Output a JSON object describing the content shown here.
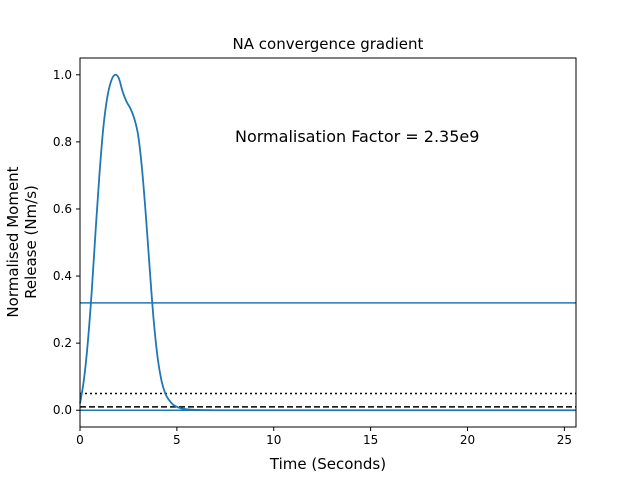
{
  "chart_data": {
    "type": "line",
    "title": "NA convergence gradient",
    "xlabel": "Time (Seconds)",
    "ylabel_lines": [
      "Normalised Moment",
      "Release (Nm/s)"
    ],
    "xlim": [
      0,
      25.6
    ],
    "ylim": [
      -0.05,
      1.05
    ],
    "x_ticks": [
      0,
      5,
      10,
      15,
      20,
      25
    ],
    "y_ticks": [
      0.0,
      0.2,
      0.4,
      0.6,
      0.8,
      1.0
    ],
    "x_tick_labels": [
      "0",
      "5",
      "10",
      "15",
      "20",
      "25"
    ],
    "y_tick_labels": [
      "0.0",
      "0.2",
      "0.4",
      "0.6",
      "0.8",
      "1.0"
    ],
    "grid": false,
    "line_color": "#1f77b4",
    "series": [
      {
        "style": "solid",
        "color": "#1f77b4",
        "x": [
          0,
          0.2,
          0.4,
          0.6,
          0.8,
          1.0,
          1.2,
          1.4,
          1.6,
          1.8,
          2.0,
          2.2,
          2.4,
          2.6,
          2.8,
          3.0,
          3.2,
          3.4,
          3.6,
          3.8,
          4.0,
          4.2,
          4.4,
          4.6,
          4.8,
          5.0,
          5.2,
          5.5,
          6.0,
          7.0,
          10,
          15,
          20,
          25.6
        ],
        "y": [
          0.02,
          0.09,
          0.2,
          0.35,
          0.53,
          0.7,
          0.84,
          0.93,
          0.98,
          1.0,
          0.99,
          0.95,
          0.92,
          0.9,
          0.87,
          0.82,
          0.72,
          0.58,
          0.42,
          0.27,
          0.16,
          0.09,
          0.05,
          0.03,
          0.017,
          0.01,
          0.006,
          0.003,
          0.001,
          0.0,
          0.0,
          0.0,
          0.0,
          0.0
        ]
      }
    ],
    "hlines": [
      {
        "y": 0.32,
        "style": "solid",
        "color": "#1f77b4"
      },
      {
        "y": 0.05,
        "style": "dotted",
        "color": "#000000"
      },
      {
        "y": 0.01,
        "style": "dashed",
        "color": "#000000"
      },
      {
        "y": 0.0,
        "style": "solid",
        "color": "#1f77b4"
      }
    ],
    "annotation": {
      "text": "Normalisation Factor = 2.35e9",
      "x": 8.0,
      "y": 0.8
    }
  }
}
